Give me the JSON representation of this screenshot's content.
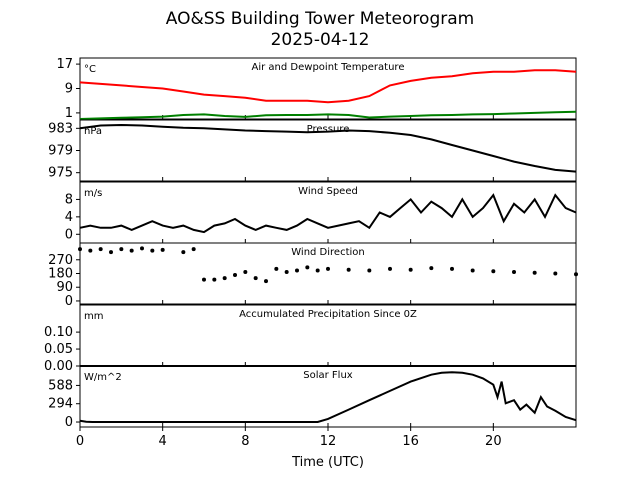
{
  "chart_data": {
    "type": "line",
    "title": "AO&SS Building Tower Meteorogram",
    "subtitle": "2025-04-12",
    "xlabel": "Time (UTC)",
    "xlim": [
      0,
      24
    ],
    "xticks": [
      0,
      4,
      8,
      12,
      16,
      20
    ],
    "panels": [
      {
        "id": "temperature",
        "title": "Air and Dewpoint Temperature",
        "unit": "°C",
        "ylim": [
          -1,
          19
        ],
        "yticks": [
          1,
          9,
          17
        ],
        "series": [
          {
            "color": "#ff0000",
            "x": [
              0,
              1,
              2,
              3,
              4,
              5,
              6,
              7,
              8,
              9,
              10,
              11,
              12,
              13,
              14,
              15,
              16,
              17,
              18,
              19,
              20,
              21,
              22,
              23,
              24
            ],
            "values": [
              11,
              10.5,
              10,
              9.5,
              9,
              8,
              7,
              6.5,
              6,
              5,
              5,
              5,
              4.5,
              5,
              6.5,
              10,
              11.5,
              12.5,
              13,
              14,
              14.5,
              14.5,
              15,
              15,
              14.5
            ]
          },
          {
            "color": "#008000",
            "x": [
              0,
              1,
              2,
              3,
              4,
              5,
              6,
              7,
              8,
              9,
              10,
              11,
              12,
              13,
              14,
              15,
              16,
              17,
              18,
              19,
              20,
              21,
              22,
              23,
              24
            ],
            "values": [
              -1,
              -0.8,
              -0.6,
              -0.4,
              -0.2,
              0.3,
              0.5,
              0,
              -0.3,
              0.2,
              0.3,
              0.3,
              0.5,
              0.3,
              -0.5,
              -0.2,
              0,
              0.2,
              0.3,
              0.5,
              0.6,
              0.8,
              1,
              1.2,
              1.4
            ]
          }
        ]
      },
      {
        "id": "pressure",
        "title": "Pressure",
        "unit": "hPa",
        "ylim": [
          973.5,
          984.5
        ],
        "yticks": [
          975,
          979,
          983
        ],
        "series": [
          {
            "color": "#000000",
            "x": [
              0,
              1,
              2,
              3,
              4,
              5,
              6,
              7,
              8,
              9,
              10,
              11,
              12,
              13,
              14,
              15,
              16,
              17,
              18,
              19,
              20,
              21,
              22,
              23,
              24
            ],
            "values": [
              983,
              983.5,
              983.6,
              983.5,
              983.3,
              983.1,
              983,
              982.8,
              982.6,
              982.5,
              982.4,
              982.3,
              982.4,
              982.6,
              982.5,
              982.2,
              981.8,
              981,
              980,
              979,
              978,
              977,
              976.2,
              975.5,
              975.2
            ]
          }
        ]
      },
      {
        "id": "wind_speed",
        "title": "Wind Speed",
        "unit": "m/s",
        "ylim": [
          -2,
          12
        ],
        "yticks": [
          0,
          4,
          8
        ],
        "series": [
          {
            "color": "#000000",
            "x": [
              0,
              0.5,
              1,
              1.5,
              2,
              2.5,
              3,
              3.5,
              4,
              4.5,
              5,
              5.5,
              6,
              6.5,
              7,
              7.5,
              8,
              8.5,
              9,
              9.5,
              10,
              10.5,
              11,
              11.5,
              12,
              12.5,
              13,
              13.5,
              14,
              14.5,
              15,
              15.5,
              16,
              16.5,
              17,
              17.5,
              18,
              18.5,
              19,
              19.5,
              20,
              20.5,
              21,
              21.5,
              22,
              22.5,
              23,
              23.5,
              24
            ],
            "values": [
              1.5,
              2,
              1.5,
              1.5,
              2,
              1,
              2,
              3,
              2,
              1.5,
              2,
              1,
              0.5,
              2,
              2.5,
              3.5,
              2,
              1,
              2,
              1.5,
              1,
              2,
              3.5,
              2.5,
              1.5,
              2,
              2.5,
              3,
              1.5,
              5,
              4,
              6,
              8,
              5,
              7.5,
              6,
              4,
              8,
              4,
              6,
              9,
              3,
              7,
              5,
              8,
              4,
              9,
              6,
              5
            ]
          }
        ]
      },
      {
        "id": "wind_direction",
        "title": "Wind Direction",
        "unit": "",
        "ylim": [
          -20,
          380
        ],
        "yticks": [
          0,
          90,
          180,
          270
        ],
        "series": [
          {
            "color": "#000000",
            "x": [
              0,
              0.5,
              1,
              1.5,
              2,
              2.5,
              3,
              3.5,
              4,
              5,
              5.5,
              6,
              6.5,
              7,
              7.5,
              8,
              8.5,
              9,
              9.5,
              10,
              10.5,
              11,
              11.5,
              12,
              13,
              14,
              15,
              16,
              17,
              18,
              19,
              20,
              21,
              22,
              23,
              24
            ],
            "values": [
              340,
              330,
              340,
              320,
              340,
              330,
              345,
              330,
              335,
              320,
              340,
              140,
              140,
              150,
              170,
              190,
              150,
              130,
              210,
              190,
              200,
              220,
              200,
              210,
              205,
              200,
              210,
              205,
              215,
              210,
              200,
              195,
              190,
              185,
              180,
              175
            ]
          }
        ]
      },
      {
        "id": "precipitation",
        "title": "Accumulated Precipitation Since 0Z",
        "unit": "mm",
        "ylim": [
          0,
          0.18
        ],
        "yticks": [
          0.0,
          0.05,
          0.1
        ],
        "series": [
          {
            "color": "#000000",
            "x": [
              0,
              24
            ],
            "values": [
              0,
              0
            ]
          }
        ]
      },
      {
        "id": "solar_flux",
        "title": "Solar Flux",
        "unit": "W/m^2",
        "ylim": [
          -80,
          900
        ],
        "yticks": [
          0,
          294,
          588
        ],
        "series": [
          {
            "color": "#000000",
            "x": [
              0,
              0.3,
              0.6,
              1,
              2,
              4,
              6,
              8,
              10,
              11,
              11.5,
              12,
              13,
              14,
              15,
              16,
              17,
              17.5,
              18,
              18.5,
              19,
              19.5,
              20,
              20.2,
              20.4,
              20.6,
              21,
              21.3,
              21.6,
              22,
              22.3,
              22.6,
              23,
              23.5,
              24
            ],
            "values": [
              20,
              5,
              0,
              0,
              0,
              0,
              0,
              0,
              0,
              0,
              0,
              50,
              200,
              350,
              500,
              650,
              760,
              790,
              800,
              790,
              760,
              700,
              600,
              400,
              650,
              300,
              350,
              200,
              280,
              150,
              400,
              250,
              180,
              80,
              30
            ]
          }
        ]
      }
    ]
  }
}
